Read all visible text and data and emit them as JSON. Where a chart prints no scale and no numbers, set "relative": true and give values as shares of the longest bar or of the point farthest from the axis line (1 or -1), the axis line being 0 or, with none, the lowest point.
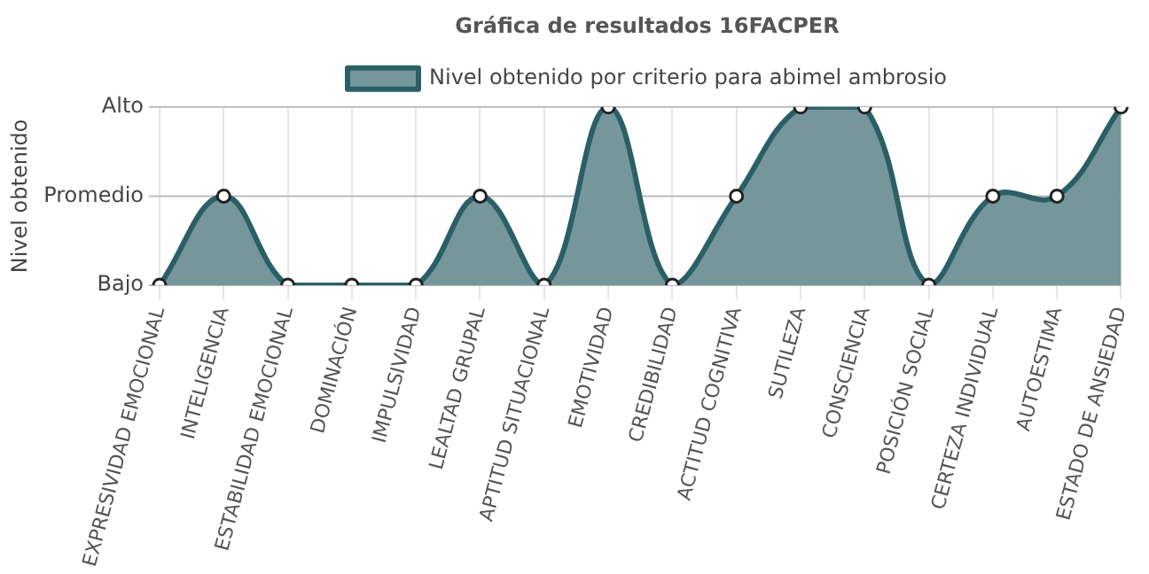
{
  "chart_data": {
    "type": "area",
    "title": "Gráfica de resultados 16FACPER",
    "ylabel": "Nivel obtenido",
    "categories": [
      "EXPRESIVIDAD EMOCIONAL",
      "INTELIGENCIA",
      "ESTABILIDAD EMOCIONAL",
      "DOMINACIÓN",
      "IMPULSIVIDAD",
      "LEALTAD GRUPAL",
      "APTITUD SITUACIONAL",
      "EMOTIVIDAD",
      "CREDIBILIDAD",
      "ACTITUD COGNITIVA",
      "SUTILEZA",
      "CONSCIENCIA",
      "POSICIÓN SOCIAL",
      "CERTEZA INDIVIDUAL",
      "AUTOESTIMA",
      "ESTADO DE ANSIEDAD"
    ],
    "series": [
      {
        "name": "Nivel obtenido por criterio para abimel ambrosio",
        "color": "#2b5f66",
        "values": [
          0,
          0.5,
          0,
          0,
          0,
          0.5,
          0,
          1,
          0,
          0.5,
          1,
          1,
          0,
          0.5,
          0.5,
          1
        ]
      }
    ],
    "relative": true,
    "ref_lines": [
      {
        "axis": "y",
        "value": 0,
        "label": "Bajo",
        "color": "#bbbbbb"
      },
      {
        "axis": "y",
        "value": 0.5,
        "label": "Promedio",
        "color": "#bbbbbb"
      },
      {
        "axis": "y",
        "value": 1,
        "label": "Alto",
        "color": "#bbbbbb"
      }
    ],
    "grid": "x",
    "legend": "top",
    "marker": "circle"
  }
}
